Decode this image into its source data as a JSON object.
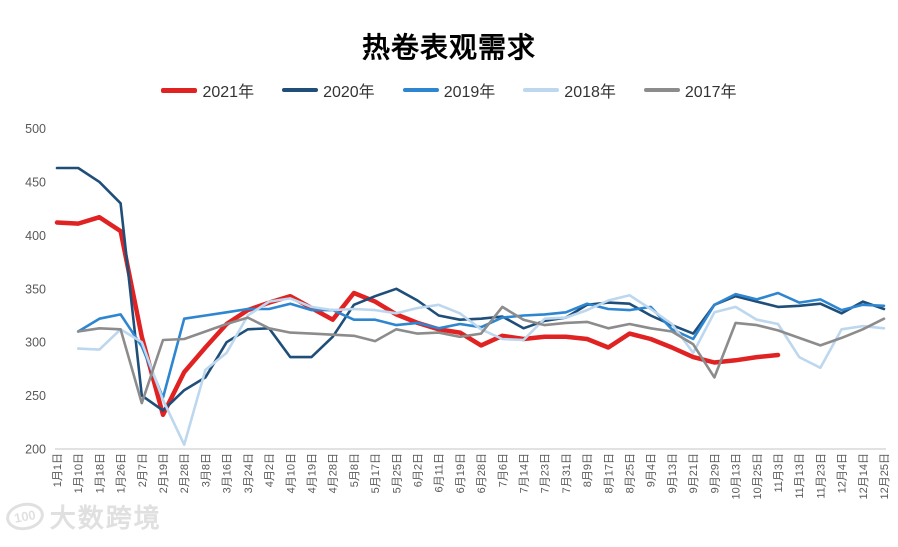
{
  "title": "热卷表观需求",
  "watermark": {
    "logo": "100",
    "text": "大数跨境"
  },
  "colors": {
    "axis_text": "#595959",
    "axis_line": "#d9d9d9",
    "title_text": "#000000",
    "legend_text": "#333333",
    "watermark": "#d9d9d9"
  },
  "chart_data": {
    "type": "line",
    "title": "热卷表观需求",
    "xlabel": "",
    "ylabel": "",
    "ylim": [
      200,
      500
    ],
    "y_ticks": [
      500,
      450,
      400,
      350,
      300,
      250,
      200
    ],
    "grid": "none",
    "legend_position": "top",
    "x_labels": [
      "1月1日",
      "1月10日",
      "1月18日",
      "1月26日",
      "2月7日",
      "2月19日",
      "2月28日",
      "3月8日",
      "3月16日",
      "3月24日",
      "4月2日",
      "4月10日",
      "4月19日",
      "4月28日",
      "5月8日",
      "5月17日",
      "5月25日",
      "6月2日",
      "6月11日",
      "6月19日",
      "6月28日",
      "7月6日",
      "7月14日",
      "7月23日",
      "7月31日",
      "8月9日",
      "8月17日",
      "8月25日",
      "9月4日",
      "9月13日",
      "9月21日",
      "9月29日",
      "10月13日",
      "10月25日",
      "11月3日",
      "11月13日",
      "11月23日",
      "12月4日",
      "12月14日",
      "12月25日"
    ],
    "series": [
      {
        "name": "2021年",
        "color": "#e02222",
        "width": 4.5,
        "values": [
          412,
          411,
          417,
          404,
          305,
          232,
          272,
          295,
          317,
          330,
          337,
          343,
          332,
          321,
          346,
          338,
          326,
          318,
          312,
          309,
          297,
          306,
          303,
          305,
          305,
          303,
          295,
          308,
          303,
          295,
          286,
          281,
          283,
          286,
          288,
          null,
          null,
          null,
          null,
          null
        ]
      },
      {
        "name": "2020年",
        "color": "#1f4e79",
        "width": 2.6,
        "values": [
          463,
          463,
          450,
          430,
          250,
          236,
          255,
          267,
          300,
          312,
          313,
          286,
          286,
          305,
          335,
          343,
          350,
          339,
          325,
          321,
          322,
          324,
          313,
          320,
          323,
          335,
          337,
          336,
          325,
          316,
          308,
          335,
          343,
          338,
          333,
          334,
          336,
          327,
          338,
          331
        ]
      },
      {
        "name": "2019年",
        "color": "#2e86d0",
        "width": 2.6,
        "values": [
          null,
          310,
          322,
          326,
          296,
          248,
          322,
          325,
          328,
          331,
          331,
          336,
          330,
          330,
          321,
          321,
          316,
          318,
          313,
          317,
          314,
          323,
          325,
          326,
          328,
          336,
          331,
          330,
          333,
          312,
          303,
          335,
          345,
          340,
          346,
          337,
          340,
          330,
          335,
          334
        ]
      },
      {
        "name": "2018年",
        "color": "#bdd7ee",
        "width": 2.6,
        "values": [
          null,
          294,
          293,
          312,
          300,
          246,
          204,
          274,
          290,
          325,
          338,
          341,
          333,
          330,
          331,
          330,
          327,
          332,
          335,
          327,
          312,
          303,
          302,
          322,
          323,
          330,
          339,
          344,
          331,
          317,
          290,
          328,
          333,
          321,
          317,
          286,
          276,
          312,
          315,
          313
        ]
      },
      {
        "name": "2017年",
        "color": "#8c8c8c",
        "width": 2.6,
        "values": [
          null,
          310,
          313,
          312,
          243,
          302,
          303,
          310,
          317,
          323,
          313,
          309,
          308,
          307,
          306,
          301,
          312,
          308,
          309,
          305,
          308,
          333,
          321,
          316,
          318,
          319,
          313,
          317,
          313,
          310,
          298,
          267,
          318,
          316,
          311,
          304,
          297,
          304,
          312,
          322
        ]
      }
    ]
  }
}
